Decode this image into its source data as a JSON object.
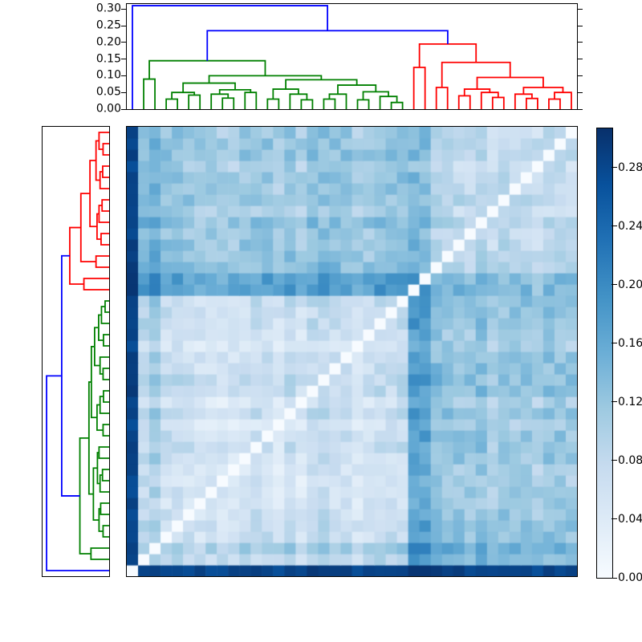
{
  "figure": {
    "background": "#ffffff",
    "description": "Hierarchically clustered distance-matrix heatmap with top and left dendrograms and a colorbar"
  },
  "chart_data": {
    "type": "heatmap",
    "title": "",
    "n_leaves": 40,
    "leaf_order_note": "columns left-to-right = leaves 0..39; rows bottom-to-top = leaves 0..39 (white zero diagonal runs bottom-left to top-right)",
    "clusters": {
      "outlier_leaf": 0,
      "green_leaves": [
        1,
        24
      ],
      "red_leaves": [
        25,
        39
      ]
    },
    "top_dendrogram": {
      "ylim": [
        0,
        0.315
      ],
      "tick_values": [
        0.0,
        0.05,
        0.1,
        0.15,
        0.2,
        0.25,
        0.3
      ],
      "tick_labels": [
        "0.00",
        "0.05",
        "0.10",
        "0.15",
        "0.20",
        "0.25",
        "0.30"
      ],
      "color_threshold": 0.217,
      "above_threshold_color": "#0000ff",
      "cluster_colors": [
        "#008000",
        "#ff0000"
      ],
      "tree": [
        0.31,
        0,
        [
          0.235,
          [
            0.145,
            [
              0.09,
              1,
              2
            ],
            [
              0.1,
              [
                0.078,
                [
                  0.05,
                  [
                    0.03,
                    3,
                    4
                  ],
                  [
                    0.042,
                    5,
                    6
                  ]
                ],
                [
                  0.058,
                  [
                    0.045,
                    7,
                    [
                      0.033,
                      8,
                      9
                    ]
                  ],
                  [
                    0.05,
                    10,
                    11
                  ]
                ]
              ],
              [
                0.088,
                [
                  0.06,
                  [
                    0.03,
                    12,
                    13
                  ],
                  [
                    0.045,
                    14,
                    [
                      0.028,
                      15,
                      16
                    ]
                  ]
                ],
                [
                  0.072,
                  [
                    0.045,
                    [
                      0.03,
                      17,
                      18
                    ],
                    19
                  ],
                  [
                    0.052,
                    [
                      0.028,
                      20,
                      21
                    ],
                    [
                      0.038,
                      22,
                      [
                        0.02,
                        23,
                        24
                      ]
                    ]
                  ]
                ]
              ]
            ]
          ],
          [
            0.195,
            [
              0.125,
              25,
              26
            ],
            [
              0.14,
              [
                0.065,
                27,
                28
              ],
              [
                0.095,
                [
                  0.06,
                  [
                    0.04,
                    29,
                    30
                  ],
                  [
                    0.05,
                    31,
                    [
                      0.035,
                      32,
                      33
                    ]
                  ]
                ],
                [
                  0.065,
                  [
                    0.045,
                    34,
                    [
                      0.032,
                      35,
                      36
                    ]
                  ],
                  [
                    0.05,
                    [
                      0.03,
                      37,
                      38
                    ],
                    39
                  ]
                ]
              ]
            ]
          ]
        ]
      ]
    },
    "left_dendrogram": {
      "same_tree_as_top": true,
      "orientation": "root at left, leaves at right, leaf 0 at bottom",
      "xlim": [
        0,
        0.33
      ]
    },
    "heatmap": {
      "colormap": "Blues",
      "vmin": 0,
      "vmax": 0.3067,
      "diagonal_value": 0,
      "block_means": {
        "green_green": 0.062,
        "red_red": 0.082,
        "green_red_cross": 0.115,
        "outlier_vs_all": 0.282
      },
      "leaf_elevations": {
        "1": 0.008,
        "2": 0.045,
        "25": 0.05,
        "26": 0.045,
        "27": 0.018
      },
      "noise_amplitude": 0.022,
      "stripe_amplitude": 0.013,
      "colormap_stops": [
        [
          247,
          251,
          255
        ],
        [
          222,
          235,
          247
        ],
        [
          198,
          219,
          239
        ],
        [
          158,
          202,
          225
        ],
        [
          107,
          174,
          214
        ],
        [
          66,
          146,
          198
        ],
        [
          33,
          113,
          181
        ],
        [
          8,
          81,
          156
        ],
        [
          8,
          48,
          107
        ]
      ]
    },
    "colorbar": {
      "range": [
        0,
        0.3067
      ],
      "tick_values": [
        0.0,
        0.04,
        0.08,
        0.12,
        0.16,
        0.2,
        0.24,
        0.28
      ],
      "tick_labels": [
        "0.00",
        "0.04",
        "0.08",
        "0.12",
        "0.16",
        "0.20",
        "0.24",
        "0.28"
      ],
      "orientation": "vertical, dark at top"
    }
  }
}
